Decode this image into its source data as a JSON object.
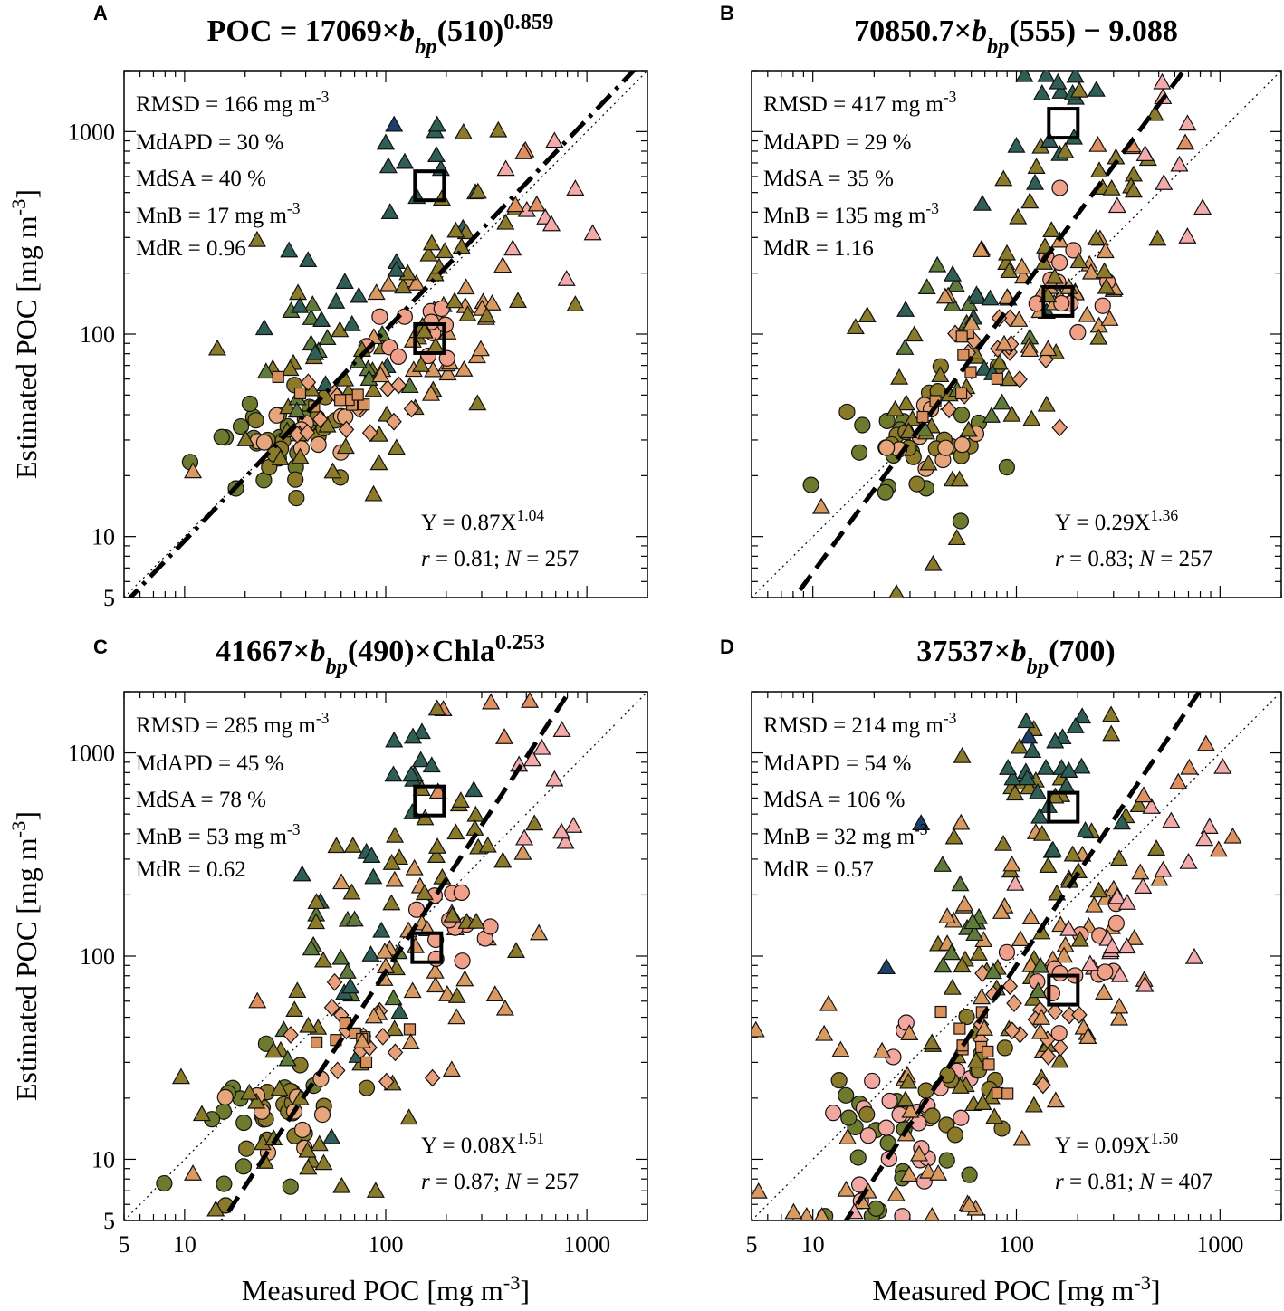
{
  "figure": {
    "x_axis_label_main": "Measured POC [mg m",
    "x_axis_label_exp": "-3",
    "x_axis_label_end": "]",
    "y_axis_label_main": "Estimated POC [mg m",
    "y_axis_label_exp": "-3",
    "y_axis_label_end": "]",
    "x_tick_labels": [
      "5",
      "10",
      "100",
      "1000"
    ],
    "y_tick_labels": [
      "5",
      "10",
      "100",
      "1000"
    ]
  },
  "chart_data": [
    {
      "type": "scatter",
      "panel": "A",
      "title": [
        "POC = 17069",
        "×",
        "b",
        "bp",
        "(510)",
        "0.859"
      ],
      "xlabel": "Measured POC [mg m-3]",
      "ylabel": "Estimated POC [mg m-3]",
      "xscale": "log",
      "yscale": "log",
      "xlim": [
        5,
        2000
      ],
      "ylim": [
        5,
        2000
      ],
      "stats": [
        [
          "RMSD = 166 mg m",
          "-3"
        ],
        [
          "MdAPD = 30 %",
          ""
        ],
        [
          "MdSA = 40 %",
          ""
        ],
        [
          "MnB = 17 mg m",
          "-3"
        ],
        [
          "MdR = 0.96",
          ""
        ]
      ],
      "fit": {
        "a": 0.87,
        "b": 1.04,
        "style": "dash-dot",
        "eq": [
          "Y = 0.87X",
          "1.04"
        ],
        "r_label": "r",
        "r_text": " = 0.81; ",
        "n_label": "N",
        "n_text": " = 257"
      },
      "highlight_boxes": [
        [
          165,
          540
        ],
        [
          165,
          95
        ]
      ],
      "clusters": [
        {
          "marker": "circle",
          "color": "#6e7a2e",
          "cx": 25,
          "cy": 28,
          "sx": 0.18,
          "sy": 0.15,
          "n": 18
        },
        {
          "marker": "circle",
          "color": "#8a7a2a",
          "cx": 40,
          "cy": 32,
          "sx": 0.15,
          "sy": 0.12,
          "n": 18
        },
        {
          "marker": "circle",
          "color": "#e6a57a",
          "cx": 40,
          "cy": 30,
          "sx": 0.12,
          "sy": 0.08,
          "n": 10
        },
        {
          "marker": "triangle",
          "color": "#8a7a2a",
          "cx": 55,
          "cy": 45,
          "sx": 0.28,
          "sy": 0.22,
          "n": 30
        },
        {
          "marker": "triangle",
          "color": "#5f7a3a",
          "cx": 45,
          "cy": 70,
          "sx": 0.22,
          "sy": 0.18,
          "n": 14
        },
        {
          "marker": "triangle",
          "color": "#2f5e56",
          "cx": 60,
          "cy": 95,
          "sx": 0.22,
          "sy": 0.2,
          "n": 12
        },
        {
          "marker": "diamond",
          "color": "#e8a07a",
          "cx": 70,
          "cy": 45,
          "sx": 0.15,
          "sy": 0.1,
          "n": 14
        },
        {
          "marker": "square",
          "color": "#d9905a",
          "cx": 55,
          "cy": 48,
          "sx": 0.12,
          "sy": 0.1,
          "n": 8
        },
        {
          "marker": "triangle",
          "color": "#d99a62",
          "cx": 160,
          "cy": 110,
          "sx": 0.25,
          "sy": 0.2,
          "n": 30
        },
        {
          "marker": "circle",
          "color": "#f0a088",
          "cx": 170,
          "cy": 110,
          "sx": 0.15,
          "sy": 0.12,
          "n": 12
        },
        {
          "marker": "triangle",
          "color": "#8a7a2a",
          "cx": 170,
          "cy": 150,
          "sx": 0.25,
          "sy": 0.25,
          "n": 18
        },
        {
          "marker": "triangle",
          "color": "#2f5e56",
          "cx": 150,
          "cy": 600,
          "sx": 0.12,
          "sy": 0.2,
          "n": 10
        },
        {
          "marker": "triangle",
          "color": "#8a7a2a",
          "cx": 250,
          "cy": 350,
          "sx": 0.2,
          "sy": 0.2,
          "n": 10
        },
        {
          "marker": "triangle",
          "color": "#f2aaaa",
          "cx": 650,
          "cy": 380,
          "sx": 0.12,
          "sy": 0.2,
          "n": 8
        },
        {
          "marker": "triangle",
          "color": "#e09060",
          "cx": 500,
          "cy": 600,
          "sx": 0.15,
          "sy": 0.15,
          "n": 4
        }
      ],
      "points": [
        {
          "marker": "triangle",
          "color": "#1c3f6b",
          "x": 110,
          "y": 1080
        },
        {
          "marker": "triangle",
          "color": "#2f5e56",
          "x": 100,
          "y": 880
        },
        {
          "marker": "triangle",
          "color": "#2f5e56",
          "x": 180,
          "y": 1080
        },
        {
          "marker": "triangle",
          "color": "#2f5e56",
          "x": 105,
          "y": 400
        },
        {
          "marker": "triangle",
          "color": "#f2aaaa",
          "x": 690,
          "y": 900
        },
        {
          "marker": "triangle",
          "color": "#d99a62",
          "x": 11,
          "y": 21
        }
      ]
    },
    {
      "type": "scatter",
      "panel": "B",
      "title": [
        "70850.7",
        "×",
        "b",
        "bp",
        "(555) − 9.088",
        ""
      ],
      "xlabel": "Measured POC [mg m-3]",
      "ylabel": "Estimated POC [mg m-3]",
      "xscale": "log",
      "yscale": "log",
      "xlim": [
        5,
        2000
      ],
      "ylim": [
        5,
        2000
      ],
      "stats": [
        [
          "RMSD = 417 mg m",
          "-3"
        ],
        [
          "MdAPD = 29 %",
          ""
        ],
        [
          "MdSA = 35 %",
          ""
        ],
        [
          "MnB = 135 mg m",
          "-3"
        ],
        [
          "MdR = 1.16",
          ""
        ]
      ],
      "fit": {
        "a": 0.29,
        "b": 1.36,
        "style": "dash",
        "eq": [
          "Y = 0.29X",
          "1.36"
        ],
        "r_label": "r",
        "r_text": " = 0.83; ",
        "n_label": "N",
        "n_text": " = 257"
      },
      "highlight_boxes": [
        [
          170,
          1100
        ],
        [
          160,
          145
        ]
      ],
      "clusters": [
        {
          "marker": "circle",
          "color": "#6e7a2e",
          "cx": 25,
          "cy": 25,
          "sx": 0.2,
          "sy": 0.2,
          "n": 16
        },
        {
          "marker": "circle",
          "color": "#8a7a2a",
          "cx": 40,
          "cy": 38,
          "sx": 0.15,
          "sy": 0.15,
          "n": 16
        },
        {
          "marker": "circle",
          "color": "#e6a57a",
          "cx": 40,
          "cy": 30,
          "sx": 0.12,
          "sy": 0.1,
          "n": 10
        },
        {
          "marker": "triangle",
          "color": "#8a7a2a",
          "cx": 50,
          "cy": 45,
          "sx": 0.28,
          "sy": 0.3,
          "n": 30
        },
        {
          "marker": "triangle",
          "color": "#5f7a3a",
          "cx": 55,
          "cy": 90,
          "sx": 0.2,
          "sy": 0.2,
          "n": 12
        },
        {
          "marker": "triangle",
          "color": "#2f5e56",
          "cx": 60,
          "cy": 150,
          "sx": 0.2,
          "sy": 0.2,
          "n": 12
        },
        {
          "marker": "diamond",
          "color": "#e8a07a",
          "cx": 75,
          "cy": 70,
          "sx": 0.15,
          "sy": 0.12,
          "n": 14
        },
        {
          "marker": "square",
          "color": "#d9905a",
          "cx": 60,
          "cy": 65,
          "sx": 0.12,
          "sy": 0.12,
          "n": 8
        },
        {
          "marker": "triangle",
          "color": "#d99a62",
          "cx": 150,
          "cy": 160,
          "sx": 0.25,
          "sy": 0.25,
          "n": 30
        },
        {
          "marker": "circle",
          "color": "#f0a088",
          "cx": 190,
          "cy": 170,
          "sx": 0.15,
          "sy": 0.15,
          "n": 12
        },
        {
          "marker": "triangle",
          "color": "#8a7a2a",
          "cx": 150,
          "cy": 250,
          "sx": 0.25,
          "sy": 0.25,
          "n": 18
        },
        {
          "marker": "triangle",
          "color": "#2f5e56",
          "cx": 160,
          "cy": 1100,
          "sx": 0.12,
          "sy": 0.2,
          "n": 12
        },
        {
          "marker": "triangle",
          "color": "#8a7a2a",
          "cx": 250,
          "cy": 600,
          "sx": 0.2,
          "sy": 0.2,
          "n": 10
        },
        {
          "marker": "triangle",
          "color": "#f2aaaa",
          "cx": 650,
          "cy": 650,
          "sx": 0.12,
          "sy": 0.2,
          "n": 8
        },
        {
          "marker": "triangle",
          "color": "#e09060",
          "cx": 400,
          "cy": 1000,
          "sx": 0.2,
          "sy": 0.2,
          "n": 4
        }
      ],
      "points": [
        {
          "marker": "triangle",
          "color": "#2f5e56",
          "x": 160,
          "y": 1750
        },
        {
          "marker": "triangle",
          "color": "#2f5e56",
          "x": 100,
          "y": 850
        },
        {
          "marker": "triangle",
          "color": "#f2aaaa",
          "x": 520,
          "y": 1750
        },
        {
          "marker": "triangle",
          "color": "#d99a62",
          "x": 11,
          "y": 14
        }
      ]
    },
    {
      "type": "scatter",
      "panel": "C",
      "title": [
        "41667",
        "×",
        "b",
        "bp",
        "(490)",
        "×Chla",
        "0.253"
      ],
      "xlabel": "Measured POC [mg m-3]",
      "ylabel": "Estimated POC [mg m-3]",
      "xscale": "log",
      "yscale": "log",
      "xlim": [
        5,
        2000
      ],
      "ylim": [
        5,
        2000
      ],
      "stats": [
        [
          "RMSD = 285 mg m",
          "-3"
        ],
        [
          "MdAPD = 45 %",
          ""
        ],
        [
          "MdSA = 78 %",
          ""
        ],
        [
          "MnB = 53 mg m",
          "-3"
        ],
        [
          "MdR = 0.62",
          ""
        ]
      ],
      "fit": {
        "a": 0.08,
        "b": 1.51,
        "style": "dash",
        "eq": [
          "Y = 0.08X",
          "1.51"
        ],
        "r_label": "r",
        "r_text": " = 0.87; ",
        "n_label": "N",
        "n_text": " = 257"
      },
      "highlight_boxes": [
        [
          165,
          580
        ],
        [
          160,
          110
        ]
      ],
      "clusters": [
        {
          "marker": "circle",
          "color": "#6e7a2e",
          "cx": 22,
          "cy": 12,
          "sx": 0.2,
          "sy": 0.2,
          "n": 16
        },
        {
          "marker": "circle",
          "color": "#8a7a2a",
          "cx": 35,
          "cy": 17,
          "sx": 0.15,
          "sy": 0.18,
          "n": 16
        },
        {
          "marker": "circle",
          "color": "#e6a57a",
          "cx": 35,
          "cy": 16,
          "sx": 0.12,
          "sy": 0.1,
          "n": 10
        },
        {
          "marker": "triangle",
          "color": "#8a7a2a",
          "cx": 45,
          "cy": 30,
          "sx": 0.3,
          "sy": 0.35,
          "n": 30
        },
        {
          "marker": "triangle",
          "color": "#5f7a3a",
          "cx": 60,
          "cy": 80,
          "sx": 0.2,
          "sy": 0.2,
          "n": 12
        },
        {
          "marker": "triangle",
          "color": "#2f5e56",
          "cx": 70,
          "cy": 130,
          "sx": 0.2,
          "sy": 0.25,
          "n": 12
        },
        {
          "marker": "diamond",
          "color": "#e8a07a",
          "cx": 75,
          "cy": 40,
          "sx": 0.15,
          "sy": 0.12,
          "n": 14
        },
        {
          "marker": "square",
          "color": "#d9905a",
          "cx": 55,
          "cy": 35,
          "sx": 0.12,
          "sy": 0.12,
          "n": 8
        },
        {
          "marker": "triangle",
          "color": "#d99a62",
          "cx": 150,
          "cy": 100,
          "sx": 0.25,
          "sy": 0.25,
          "n": 30
        },
        {
          "marker": "circle",
          "color": "#f0a088",
          "cx": 200,
          "cy": 130,
          "sx": 0.15,
          "sy": 0.12,
          "n": 12
        },
        {
          "marker": "triangle",
          "color": "#8a7a2a",
          "cx": 150,
          "cy": 180,
          "sx": 0.25,
          "sy": 0.25,
          "n": 18
        },
        {
          "marker": "triangle",
          "color": "#2f5e56",
          "cx": 150,
          "cy": 800,
          "sx": 0.15,
          "sy": 0.2,
          "n": 10
        },
        {
          "marker": "triangle",
          "color": "#8a7a2a",
          "cx": 250,
          "cy": 450,
          "sx": 0.2,
          "sy": 0.2,
          "n": 10
        },
        {
          "marker": "triangle",
          "color": "#f2aaaa",
          "cx": 650,
          "cy": 600,
          "sx": 0.15,
          "sy": 0.25,
          "n": 8
        },
        {
          "marker": "triangle",
          "color": "#e09060",
          "cx": 400,
          "cy": 1000,
          "sx": 0.2,
          "sy": 0.2,
          "n": 4
        }
      ],
      "points": [
        {
          "marker": "triangle",
          "color": "#2f5e56",
          "x": 110,
          "y": 1150
        },
        {
          "marker": "triangle",
          "color": "#8a7a2a",
          "x": 180,
          "y": 1650
        },
        {
          "marker": "triangle",
          "color": "#e09060",
          "x": 520,
          "y": 1800
        },
        {
          "marker": "triangle",
          "color": "#f2aaaa",
          "x": 690,
          "y": 740
        },
        {
          "marker": "triangle",
          "color": "#e09060",
          "x": 23,
          "y": 60
        },
        {
          "marker": "triangle",
          "color": "#d99a62",
          "x": 11,
          "y": 8.5
        }
      ]
    },
    {
      "type": "scatter",
      "panel": "D",
      "title": [
        "37537",
        "×",
        "b",
        "bp",
        "(700)",
        ""
      ],
      "xlabel": "Measured POC [mg m-3]",
      "ylabel": "Estimated POC [mg m-3]",
      "xscale": "log",
      "yscale": "log",
      "xlim": [
        5,
        2000
      ],
      "ylim": [
        5,
        2000
      ],
      "stats": [
        [
          "RMSD = 214 mg m",
          "-3"
        ],
        [
          "MdAPD = 54 %",
          ""
        ],
        [
          "MdSA = 106 %",
          ""
        ],
        [
          "MnB = 32 mg m",
          "-3"
        ],
        [
          "MdR = 0.57",
          ""
        ]
      ],
      "fit": {
        "a": 0.09,
        "b": 1.5,
        "style": "dash",
        "eq": [
          "Y = 0.09X",
          "1.50"
        ],
        "r_label": "r",
        "r_text": " = 0.81; ",
        "n_label": "N",
        "n_text": " = 407"
      },
      "highlight_boxes": [
        [
          170,
          540
        ],
        [
          170,
          68
        ]
      ],
      "clusters": [
        {
          "marker": "circle",
          "color": "#6e7a2e",
          "cx": 22,
          "cy": 12,
          "sx": 0.2,
          "sy": 0.25,
          "n": 16
        },
        {
          "marker": "circle",
          "color": "#f0a8a0",
          "cx": 30,
          "cy": 16,
          "sx": 0.2,
          "sy": 0.25,
          "n": 28
        },
        {
          "marker": "circle",
          "color": "#8a7a2a",
          "cx": 45,
          "cy": 22,
          "sx": 0.18,
          "sy": 0.2,
          "n": 16
        },
        {
          "marker": "triangle",
          "color": "#d99a62",
          "cx": 30,
          "cy": 18,
          "sx": 0.3,
          "sy": 0.35,
          "n": 30
        },
        {
          "marker": "triangle",
          "color": "#8a7a2a",
          "cx": 60,
          "cy": 40,
          "sx": 0.3,
          "sy": 0.35,
          "n": 30
        },
        {
          "marker": "diamond",
          "color": "#e8a07a",
          "cx": 90,
          "cy": 45,
          "sx": 0.15,
          "sy": 0.15,
          "n": 18
        },
        {
          "marker": "square",
          "color": "#d9905a",
          "cx": 60,
          "cy": 35,
          "sx": 0.12,
          "sy": 0.12,
          "n": 10
        },
        {
          "marker": "triangle",
          "color": "#d99a62",
          "cx": 140,
          "cy": 120,
          "sx": 0.25,
          "sy": 0.3,
          "n": 40
        },
        {
          "marker": "circle",
          "color": "#f0a088",
          "cx": 190,
          "cy": 90,
          "sx": 0.15,
          "sy": 0.15,
          "n": 14
        },
        {
          "marker": "triangle",
          "color": "#f2aaaa",
          "cx": 250,
          "cy": 120,
          "sx": 0.2,
          "sy": 0.2,
          "n": 12
        },
        {
          "marker": "triangle",
          "color": "#8a7a2a",
          "cx": 180,
          "cy": 350,
          "sx": 0.25,
          "sy": 0.3,
          "n": 30
        },
        {
          "marker": "triangle",
          "color": "#2f5e56",
          "cx": 150,
          "cy": 700,
          "sx": 0.15,
          "sy": 0.2,
          "n": 20
        },
        {
          "marker": "triangle",
          "color": "#5f7a3a",
          "cx": 70,
          "cy": 150,
          "sx": 0.2,
          "sy": 0.25,
          "n": 12
        },
        {
          "marker": "triangle",
          "color": "#f2aaaa",
          "cx": 650,
          "cy": 330,
          "sx": 0.12,
          "sy": 0.2,
          "n": 10
        },
        {
          "marker": "triangle",
          "color": "#e09060",
          "cx": 550,
          "cy": 600,
          "sx": 0.15,
          "sy": 0.2,
          "n": 6
        }
      ],
      "points": [
        {
          "marker": "triangle",
          "color": "#1c3f6b",
          "x": 34,
          "y": 450
        },
        {
          "marker": "triangle",
          "color": "#1c3f6b",
          "x": 23,
          "y": 88
        },
        {
          "marker": "triangle",
          "color": "#1c3f6b",
          "x": 115,
          "y": 1200
        },
        {
          "marker": "triangle",
          "color": "#2f5e56",
          "x": 195,
          "y": 1350
        },
        {
          "marker": "circle",
          "color": "#6e7a2e",
          "x": 15,
          "y": 16
        },
        {
          "marker": "triangle",
          "color": "#f2aaaa",
          "x": 16,
          "y": 5.5
        }
      ]
    }
  ]
}
